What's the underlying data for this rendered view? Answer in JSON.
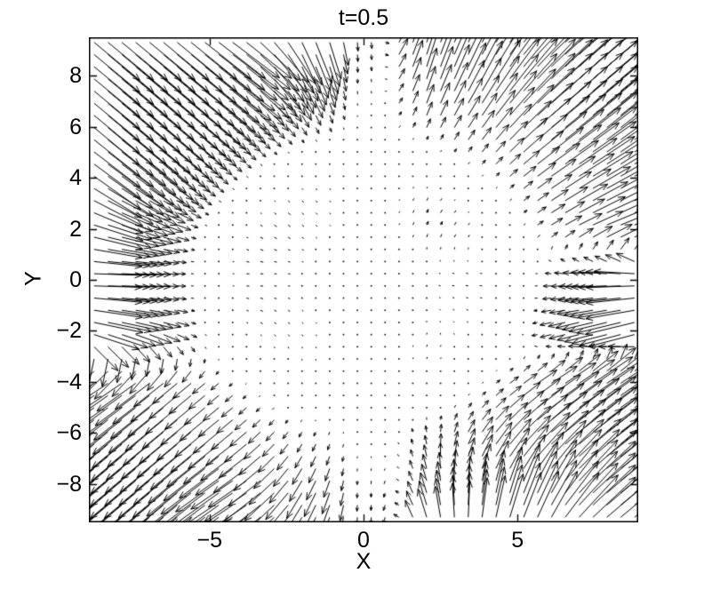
{
  "figure": {
    "title": "t=0.5",
    "background_color": "#ffffff",
    "ink_color": "#000000"
  },
  "axes": {
    "xlabel": "X",
    "ylabel": "Y",
    "xticks": [
      {
        "label": "−5",
        "value": -5
      },
      {
        "label": "0",
        "value": 0
      },
      {
        "label": "5",
        "value": 5
      }
    ],
    "yticks": [
      {
        "label": "8",
        "value": 8
      },
      {
        "label": "6",
        "value": 6
      },
      {
        "label": "4",
        "value": 4
      },
      {
        "label": "2",
        "value": 2
      },
      {
        "label": "0",
        "value": 0
      },
      {
        "label": "−2",
        "value": -2
      },
      {
        "label": "−4",
        "value": -4
      },
      {
        "label": "−6",
        "value": -6
      },
      {
        "label": "−8",
        "value": -8
      }
    ],
    "xlim": [
      -8.92,
      8.92
    ],
    "ylim": [
      -9.5,
      9.5
    ]
  },
  "chart_data": {
    "type": "quiver",
    "title": "t=0.5",
    "xlabel": "X",
    "ylabel": "Y",
    "xlim": [
      -8.92,
      8.92
    ],
    "ylim": [
      -9.5,
      9.5
    ],
    "grid": {
      "nx": 40,
      "x_start": -8.75,
      "x_step": 0.45,
      "ny": 40,
      "y_start": -9.3,
      "y_step": 0.477
    },
    "field_summary": "Black arrow field on ~40x40 grid. Upper-left quadrant points down-right (SE, inward); upper-right points up-right (NE, outward); lower-left points down-left (SW, outward); lower-right interior points up-right (NE) turning to up (N/NNW) near x~1-2. Along y~0 flow points horizontally inward toward x=0 (E on left half, W on right half, with long dark horizontal arrows near both side edges). Vertical component flips sign across x=0: down for x<0, up for x>0, leaving a white near-zero stripe along x=0. Magnitude is near zero at the origin and on a ring of radius ~5 (white oval of dots) and grows strongly outward, longest arrows in the four corners.",
    "control_grid": {
      "x": [
        -8,
        -6,
        -4,
        -2,
        0,
        2,
        4,
        6,
        8
      ],
      "y": [
        8,
        6,
        4,
        2,
        0,
        -2,
        -4,
        -6,
        -8
      ],
      "uv": [
        [
          [
            1,
            -1
          ],
          [
            1,
            -1
          ],
          [
            1,
            -0.9
          ],
          [
            0.35,
            -0.9
          ],
          [
            0,
            -0.55
          ],
          [
            0.25,
            0.95
          ],
          [
            0.45,
            1
          ],
          [
            0.85,
            1
          ],
          [
            1,
            1
          ]
        ],
        [
          [
            1,
            -1
          ],
          [
            1,
            -1
          ],
          [
            0.9,
            -0.85
          ],
          [
            0.4,
            -0.75
          ],
          [
            0,
            -0.5
          ],
          [
            0.3,
            0.85
          ],
          [
            0.55,
            0.9
          ],
          [
            1,
            1
          ],
          [
            1,
            0.95
          ]
        ],
        [
          [
            1,
            -0.85
          ],
          [
            1,
            -1
          ],
          [
            0.75,
            -0.75
          ],
          [
            0.35,
            -0.5
          ],
          [
            0,
            -0.3
          ],
          [
            0.25,
            0.55
          ],
          [
            0.5,
            0.65
          ],
          [
            0.95,
            0.8
          ],
          [
            1,
            0.7
          ]
        ],
        [
          [
            1,
            -0.35
          ],
          [
            1,
            -0.4
          ],
          [
            0.6,
            -0.4
          ],
          [
            0.3,
            -0.3
          ],
          [
            0,
            -0.15
          ],
          [
            0.25,
            0.7
          ],
          [
            0.4,
            0.55
          ],
          [
            0.75,
            0.55
          ],
          [
            0.95,
            0.45
          ]
        ],
        [
          [
            1,
            0
          ],
          [
            1,
            0
          ],
          [
            0.55,
            0
          ],
          [
            0.25,
            0
          ],
          [
            0,
            0
          ],
          [
            -0.25,
            0.05
          ],
          [
            -0.5,
            0.05
          ],
          [
            -0.85,
            0
          ],
          [
            -1,
            0
          ]
        ],
        [
          [
            1,
            -0.3
          ],
          [
            1,
            -0.4
          ],
          [
            0.5,
            -0.4
          ],
          [
            0.2,
            -0.3
          ],
          [
            0,
            -0.2
          ],
          [
            0.05,
            0.35
          ],
          [
            -0.35,
            0.15
          ],
          [
            -0.9,
            -0.3
          ],
          [
            -1,
            -0.35
          ]
        ],
        [
          [
            -1,
            -0.8
          ],
          [
            -1,
            -1
          ],
          [
            -0.55,
            -0.55
          ],
          [
            -0.15,
            -0.35
          ],
          [
            0,
            -0.25
          ],
          [
            0.15,
            0.5
          ],
          [
            0.6,
            0.6
          ],
          [
            1,
            0.8
          ],
          [
            1,
            0.8
          ]
        ],
        [
          [
            -1,
            -1
          ],
          [
            -1,
            -1
          ],
          [
            -0.8,
            -0.8
          ],
          [
            -0.25,
            -0.5
          ],
          [
            0,
            -0.4
          ],
          [
            -0.1,
            0.6
          ],
          [
            0.5,
            0.8
          ],
          [
            1,
            1
          ],
          [
            1,
            0.9
          ]
        ],
        [
          [
            -1,
            -1
          ],
          [
            -1,
            -1
          ],
          [
            -0.9,
            -0.7
          ],
          [
            -0.3,
            -0.6
          ],
          [
            0,
            -0.5
          ],
          [
            -0.12,
            0.45
          ],
          [
            0.08,
            0.6
          ],
          [
            0.3,
            0.7
          ],
          [
            1,
            1
          ]
        ]
      ]
    },
    "magnitude_model": {
      "scale": 0.11,
      "ring_radius": 5,
      "ring_gap": 1.2,
      "ring_floor": 0.12,
      "center_soft": 2.6,
      "x_stripe_width": 1.3,
      "cap_units": 2.1
    },
    "legend": null,
    "grid_lines": "off"
  }
}
